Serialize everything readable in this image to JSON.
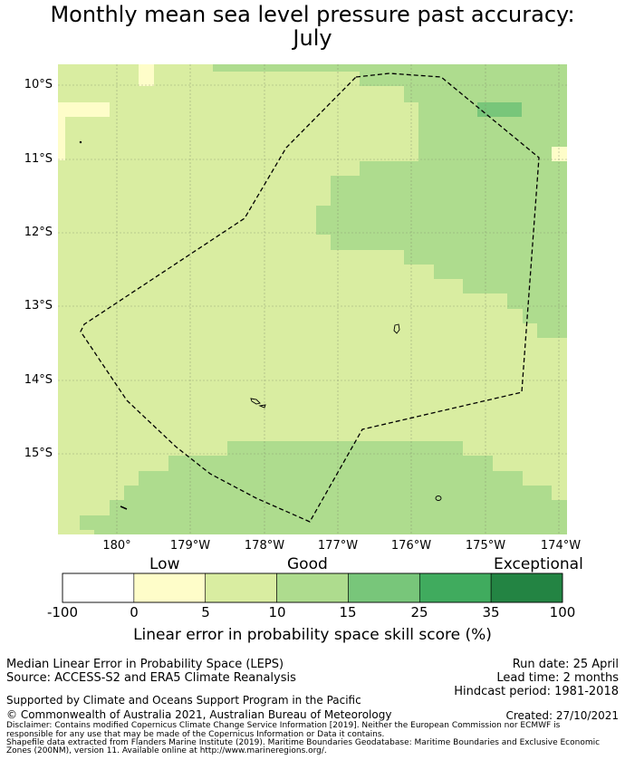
{
  "title": {
    "line1": "Monthly mean sea level pressure past accuracy:",
    "line2": "July"
  },
  "map": {
    "lat_labels": [
      "10°S",
      "11°S",
      "12°S",
      "13°S",
      "14°S",
      "15°S"
    ],
    "lon_labels": [
      "180°",
      "179°W",
      "178°W",
      "177°W",
      "176°W",
      "175°W",
      "174°W"
    ],
    "colors": {
      "score_0_5": "#fefdc9",
      "score_5_10": "#d9eda1",
      "score_10_15": "#aedc8e",
      "score_15_25": "#78c67a",
      "eez_line": "#000000"
    }
  },
  "colorbar": {
    "categories": [
      "Low",
      "Good",
      "Exceptional"
    ],
    "ticks": [
      "-100",
      "0",
      "5",
      "10",
      "15",
      "25",
      "35",
      "100"
    ],
    "colors": [
      "#ffffff",
      "#fefdc9",
      "#d9eda1",
      "#aedc8e",
      "#78c67a",
      "#40ab5e",
      "#238443"
    ],
    "label": "Linear error in probability space skill score (%)"
  },
  "info": {
    "method": "Median Linear Error in Probability Space (LEPS)",
    "source": "Source: ACCESS-S2 and ERA5 Climate Reanalysis",
    "run_date": "Run date: 25 April",
    "lead_time": "Lead time: 2 months",
    "hindcast": "Hindcast period: 1981-2018",
    "support": "Supported by Climate and Oceans Support Program in the Pacific",
    "copyright": "© Commonwealth of Australia 2021, Australian Bureau of Meteorology",
    "created": "Created: 27/10/2021",
    "disclaimer_1": "Disclaimer: Contains modified Copernicus Climate Change Service Information [2019]. Neither the European Commission nor ECMWF is",
    "disclaimer_2": "responsible for any use that may be made of the Copernicus Information or Data it contains.",
    "disclaimer_3": "Shapefile data extracted from Flanders Marine Institute (2019). Maritime Boundaries Geodatabase: Maritime Boundaries and Exclusive Economic",
    "disclaimer_4": "Zones (200NM), version 11. Available online at http://www.marineregions.org/."
  }
}
